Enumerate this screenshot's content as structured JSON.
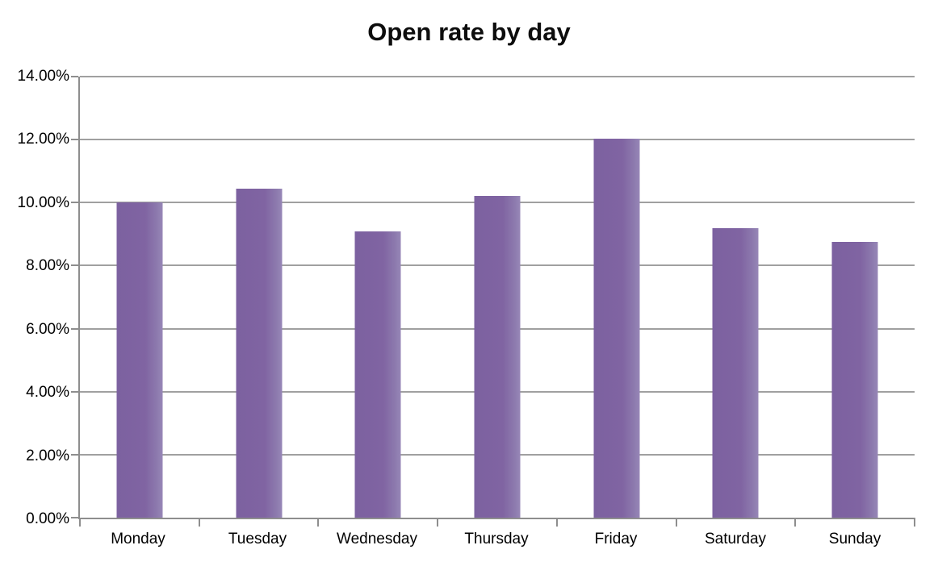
{
  "chart_data": {
    "type": "bar",
    "title": "Open rate by day",
    "categories": [
      "Monday",
      "Tuesday",
      "Wednesday",
      "Thursday",
      "Friday",
      "Saturday",
      "Sunday"
    ],
    "values": [
      10.02,
      10.45,
      9.08,
      10.2,
      12.03,
      9.2,
      8.75
    ],
    "unit": "%",
    "xlabel": "",
    "ylabel": "",
    "ylim": [
      0,
      14
    ],
    "ytick_step": 2,
    "ytick_labels": [
      "0.00%",
      "2.00%",
      "4.00%",
      "6.00%",
      "8.00%",
      "10.00%",
      "12.00%",
      "14.00%"
    ],
    "grid": true,
    "legend": false,
    "legend_position": "none",
    "bar_color": "#8064A2",
    "gridline_color": "#A0A0A0",
    "axis_color": "#8E8E8E",
    "text_color": "#000000",
    "background": "#FFFFFF"
  }
}
